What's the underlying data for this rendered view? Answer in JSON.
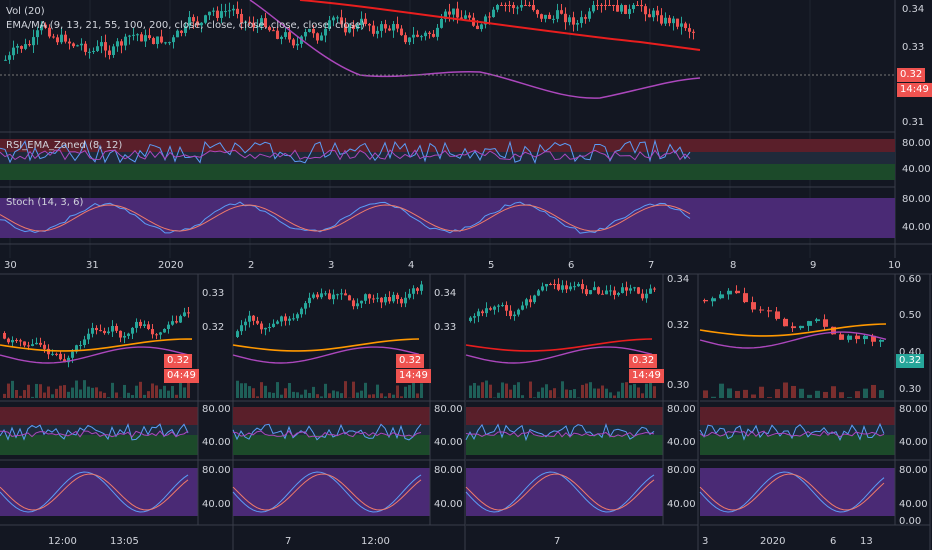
{
  "main": {
    "legend": {
      "volume": "Vol (20)",
      "ema": "EMA/MA (9, 13, 21, 55, 100, 200, close, close, close, close, close, close)",
      "rsi": "RSI_EMA_Zoned (8, 12)",
      "stoch": "Stoch (14, 3, 6)"
    },
    "price_axis": [
      "0.34",
      "0.33",
      "0.31"
    ],
    "price_tag": "0.32",
    "timer_tag": "14:49",
    "rsi_axis": [
      "80.00",
      "40.00"
    ],
    "stoch_axis": [
      "80.00",
      "40.00"
    ],
    "time_axis": [
      "30",
      "31",
      "2020",
      "2",
      "3",
      "4",
      "5",
      "6",
      "7",
      "8",
      "9",
      "10"
    ]
  },
  "panes": [
    {
      "price_axis": [
        "0.33",
        "0.32"
      ],
      "price_tag": "0.32",
      "timer_tag": "04:49",
      "rsi_axis": [
        "80.00",
        "40.00"
      ],
      "stoch_axis": [
        "80.00",
        "40.00"
      ],
      "time_axis": [
        "12:00",
        "13:05"
      ]
    },
    {
      "price_axis": [
        "0.34",
        "0.33"
      ],
      "price_tag": "0.32",
      "timer_tag": "14:49",
      "rsi_axis": [
        "80.00",
        "40.00"
      ],
      "stoch_axis": [
        "80.00",
        "40.00"
      ],
      "time_axis": [
        "7",
        "12:00"
      ]
    },
    {
      "price_axis": [
        "0.34",
        "0.32",
        "0.30"
      ],
      "price_tag": "0.32",
      "timer_tag": "14:49",
      "rsi_axis": [
        "80.00",
        "40.00"
      ],
      "stoch_axis": [
        "80.00",
        "40.00"
      ],
      "time_axis": [
        "7"
      ]
    },
    {
      "price_axis": [
        "0.60",
        "0.50",
        "0.40",
        "0.30"
      ],
      "price_tag": "0.32",
      "rsi_axis": [
        "80.00",
        "40.00"
      ],
      "stoch_axis": [
        "80.00",
        "40.00",
        "0.00"
      ],
      "time_axis": [
        "3",
        "2020",
        "6",
        "13"
      ]
    }
  ],
  "colors": {
    "bg": "#131722",
    "up": "#26a69a",
    "down": "#ef5350",
    "ema_red": "#e91e1e",
    "ma_magenta": "#ab47bc",
    "orange": "#ff9800",
    "rsi_line": "#5b9cf6",
    "stoch_band": "#4a2a75",
    "rsi_top": "#5a1f2a",
    "rsi_bottom": "#1c4a2a"
  }
}
